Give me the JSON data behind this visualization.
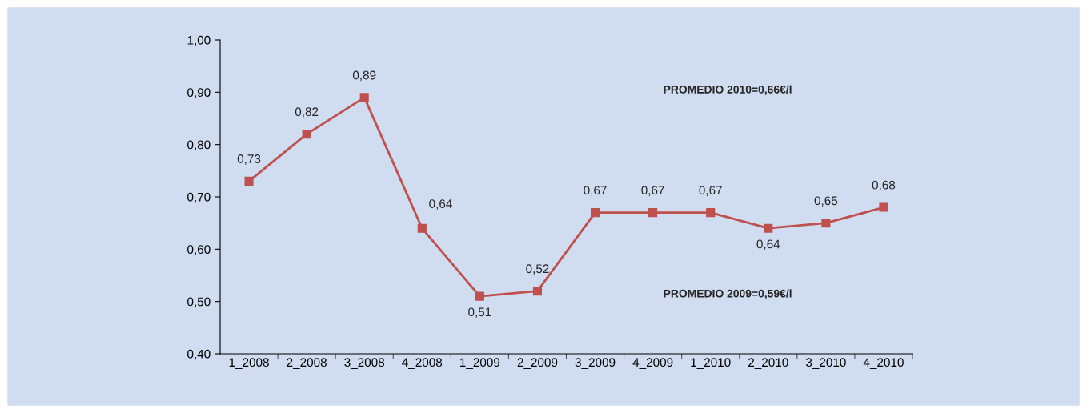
{
  "chart_data": {
    "type": "line",
    "categories": [
      "1_2008",
      "2_2008",
      "3_2008",
      "4_2008",
      "1_2009",
      "2_2009",
      "3_2009",
      "4_2009",
      "1_2010",
      "2_2010",
      "3_2010",
      "4_2010"
    ],
    "series": [
      {
        "color": "#c0504d",
        "values": [
          0.73,
          0.82,
          0.89,
          0.64,
          0.51,
          0.52,
          0.67,
          0.67,
          0.67,
          0.64,
          0.65,
          0.68
        ],
        "value_labels": [
          "0,73",
          "0,82",
          "0,89",
          "0,64",
          "0,51",
          "0,52",
          "0,67",
          "0,67",
          "0,67",
          "0,64",
          "0,65",
          "0,68"
        ]
      }
    ],
    "ylim": [
      0.4,
      1.0
    ],
    "yticks": [
      {
        "value": 0.4,
        "label": "0,40"
      },
      {
        "value": 0.5,
        "label": "0,50"
      },
      {
        "value": 0.6,
        "label": "0,60"
      },
      {
        "value": 0.7,
        "label": "0,70"
      },
      {
        "value": 0.8,
        "label": "0,80"
      },
      {
        "value": 0.9,
        "label": "0,90"
      },
      {
        "value": 1.0,
        "label": "1,00"
      }
    ],
    "annotations": [
      "PROMEDIO 2010=0,66€/l",
      "PROMEDIO 2009=0,59€/l"
    ],
    "marker": "square",
    "grid": false,
    "legend": false
  }
}
